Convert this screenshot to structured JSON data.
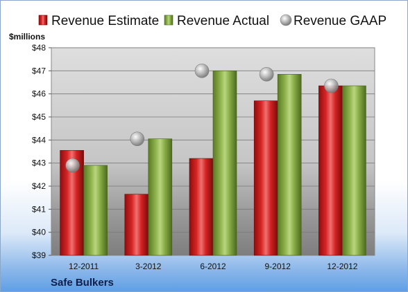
{
  "chart_data": {
    "type": "bar",
    "title": "",
    "company": "Safe Bulkers",
    "ylabel": "$millions",
    "ylim": [
      39,
      48
    ],
    "yticks": [
      "$39",
      "$40",
      "$41",
      "$42",
      "$43",
      "$44",
      "$45",
      "$46",
      "$47",
      "$48"
    ],
    "categories": [
      "12-2011",
      "3-2012",
      "6-2012",
      "9-2012",
      "12-2012"
    ],
    "series": [
      {
        "name": "Revenue Estimate",
        "kind": "bar",
        "color": "#cc1a1a",
        "values": [
          43.55,
          41.65,
          43.2,
          45.7,
          46.35
        ]
      },
      {
        "name": "Revenue Actual",
        "kind": "bar",
        "color": "#7da040",
        "values": [
          42.9,
          44.05,
          47.0,
          46.85,
          46.35
        ]
      },
      {
        "name": "Revenue GAAP",
        "kind": "marker",
        "color": "#a8a8a8",
        "values": [
          42.9,
          44.05,
          47.0,
          46.85,
          46.35
        ]
      }
    ],
    "grid": true,
    "legend": "top"
  }
}
